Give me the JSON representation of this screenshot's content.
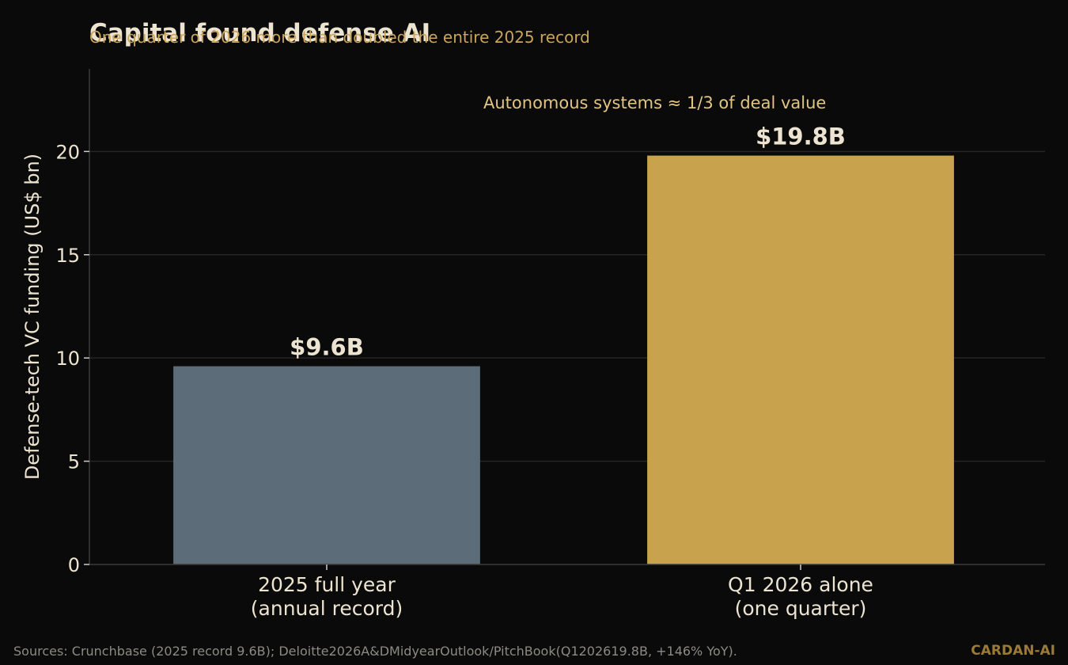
{
  "chart_data": {
    "type": "bar",
    "title": "Capital found defense AI",
    "subtitle": "One quarter of 2026 more than doubled the entire 2025 record",
    "ylabel": "Defense-tech VC funding (US$ bn)",
    "xlabel": "",
    "ylim": [
      0,
      24
    ],
    "yticks": [
      0,
      5,
      10,
      15,
      20
    ],
    "grid": true,
    "categories": [
      "2025 full year\n(annual record)",
      "Q1 2026 alone\n(one quarter)"
    ],
    "values": [
      9.6,
      19.8
    ],
    "data_labels": [
      "$9.6B",
      "$19.8B"
    ],
    "bar_colors": [
      "#5c6c78",
      "#c9a24e"
    ],
    "annotation": "Autonomous systems ≈ 1/3 of deal value"
  },
  "colors": {
    "background": "#0a0a0a",
    "text": "#ece4d0",
    "subtitle": "#c9a45a",
    "grid": "#262626",
    "axis": "#3a3a3a"
  },
  "footer": {
    "source": "Sources: Crunchbase (2025 record 9.6B); Deloitte2026A&DMidyearOutlook/PitchBook(Q1202619.8B, +146% YoY).",
    "brand": "CARDAN-AI"
  }
}
